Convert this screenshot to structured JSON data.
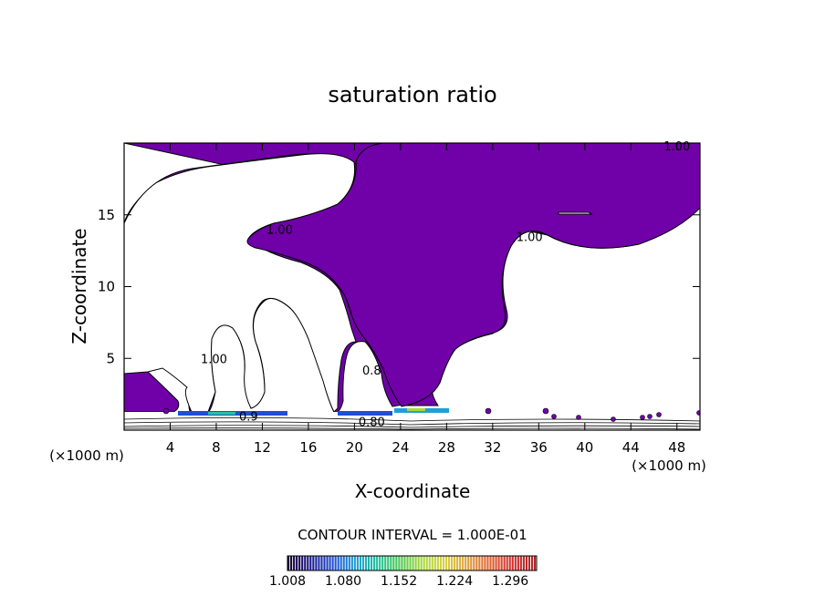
{
  "chart_data": {
    "type": "contour",
    "title": "saturation ratio",
    "xlabel": "X-coordinate",
    "ylabel": "Z-coordinate",
    "x_unit": "(×1000 m)",
    "x_unit_right": "(×1000 m)",
    "xlim": [
      0,
      50
    ],
    "ylim": [
      0,
      20
    ],
    "x_ticks": [
      4,
      8,
      12,
      16,
      20,
      24,
      28,
      32,
      36,
      40,
      44,
      48
    ],
    "y_ticks": [
      5,
      10,
      15
    ],
    "contour_labels": [
      {
        "text": "1.00",
        "x": 48,
        "y": 19.8
      },
      {
        "text": "1.00",
        "x": 13.5,
        "y": 14.0
      },
      {
        "text": "1.00",
        "x": 35.2,
        "y": 13.5
      },
      {
        "text": "1.00",
        "x": 7.8,
        "y": 5.0
      },
      {
        "text": "0.80",
        "x": 21.5,
        "y": 0.6
      },
      {
        "text": "0.8",
        "x": 21.5,
        "y": 4.2
      },
      {
        "text": "0.9",
        "x": 10.8,
        "y": 1.0
      }
    ],
    "contour_interval_text": "CONTOUR INTERVAL = 1.000E-01",
    "colorbar": {
      "labels": [
        "1.008",
        "1.080",
        "1.152",
        "1.224",
        "1.296"
      ],
      "min": 1.008,
      "max": 1.33,
      "colors": [
        "#1a0033",
        "#1a1a8c",
        "#1f4fd6",
        "#1fa0d6",
        "#22c49a",
        "#4ec84e",
        "#a8d840",
        "#d9d040",
        "#e0a040",
        "#e06030",
        "#d03030",
        "#b02828"
      ]
    },
    "fill_color": "#7000a8",
    "grid": false
  }
}
